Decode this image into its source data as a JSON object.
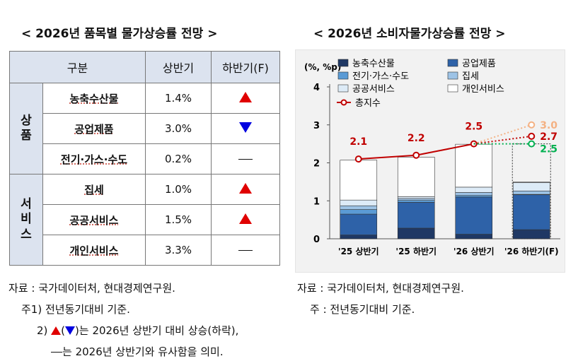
{
  "left": {
    "title": "< 2026년 품목별 물가상승률 전망 >",
    "headers": {
      "category": "구분",
      "h1": "상반기",
      "h2": "하반기(F)"
    },
    "groups": [
      {
        "label": "상\n품",
        "rows": [
          {
            "item": "농축수산물",
            "h1": "1.4%",
            "h2": "up"
          },
          {
            "item": "공업제품",
            "h1": "3.0%",
            "h2": "down"
          },
          {
            "item": "전기·가스·수도",
            "h1": "0.2%",
            "h2": "same"
          }
        ]
      },
      {
        "label": "서\n비\n스",
        "rows": [
          {
            "item": "집세",
            "h1": "1.0%",
            "h2": "up"
          },
          {
            "item": "공공서비스",
            "h1": "1.5%",
            "h2": "up"
          },
          {
            "item": "개인서비스",
            "h1": "3.3%",
            "h2": "same"
          }
        ]
      }
    ],
    "notes": {
      "source": "자료 : 국가데이터처, 현대경제연구원.",
      "note1": "주1) 전년동기대비 기준.",
      "note2_prefix": "2) ",
      "note2_text": "는 2026년 상반기 대비 상승(하락),",
      "note3_text": "는 2026년 상반기와 유사함을 의미."
    }
  },
  "right": {
    "title": "< 2026년 소비자물가상승률 전망 >",
    "source": "자료 : 국가데이터처, 현대경제연구원.",
    "note": "주 : 전년동기대비 기준."
  },
  "chart_data": {
    "type": "bar",
    "stacked": true,
    "ylabel": "(%, %p)",
    "ylim": [
      0,
      4
    ],
    "yticks": [
      0,
      1,
      2,
      3,
      4
    ],
    "categories": [
      "'25 상반기",
      "'25 하반기",
      "'26 상반기",
      "'26 하반기(F)"
    ],
    "series": [
      {
        "name": "농축수산물",
        "color": "#1f3864",
        "values": [
          0.1,
          0.28,
          0.12,
          0.24
        ]
      },
      {
        "name": "공업제품",
        "color": "#2e62a8",
        "values": [
          0.55,
          0.68,
          0.98,
          0.92
        ]
      },
      {
        "name": "전기·가스·수도",
        "color": "#5b9bd5",
        "values": [
          0.12,
          0.05,
          0.04,
          0.01
        ]
      },
      {
        "name": "집세",
        "color": "#9dc3e6",
        "values": [
          0.1,
          0.05,
          0.08,
          0.09
        ]
      },
      {
        "name": "공공서비스",
        "color": "#ddebf7",
        "values": [
          0.15,
          0.05,
          0.14,
          0.22
        ]
      },
      {
        "name": "개인서비스",
        "color": "#ffffff",
        "values": [
          1.05,
          1.04,
          1.13,
          0.02
        ]
      }
    ],
    "line": {
      "name": "총지수",
      "color": "#c00000",
      "values": [
        2.1,
        2.2,
        2.5
      ],
      "labels": [
        "2.1",
        "2.2",
        "2.5"
      ]
    },
    "forecast": [
      {
        "value": 3.0,
        "label": "3.0",
        "color": "#f4b183"
      },
      {
        "value": 2.7,
        "label": "2.7",
        "color": "#c00000"
      },
      {
        "value": 2.5,
        "label": "2.5",
        "color": "#00b050"
      }
    ],
    "forecast_bar_dotted": true,
    "grid": false,
    "legend_position": "top-left"
  }
}
